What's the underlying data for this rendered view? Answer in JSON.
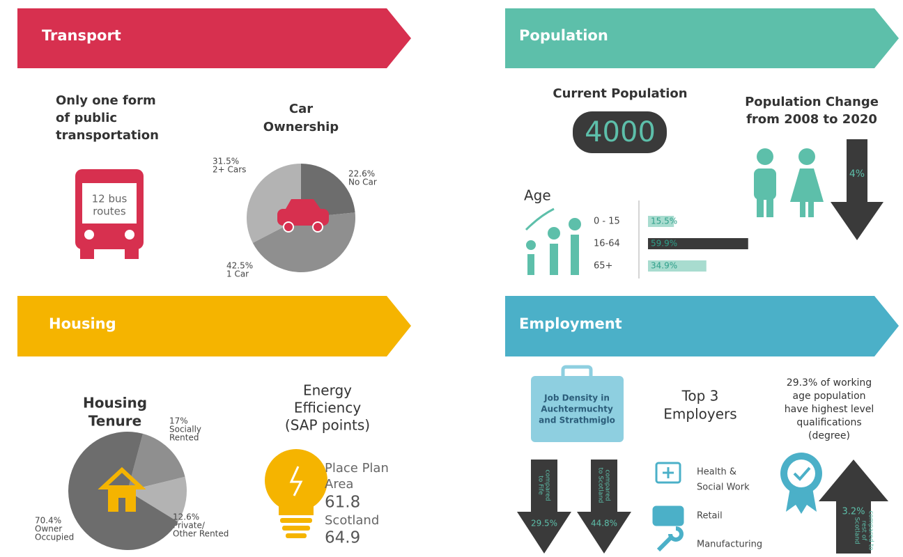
{
  "transport": {
    "title": "Transport",
    "bus": {
      "heading": [
        "Only one form",
        "of public",
        "transportation"
      ],
      "label": [
        "12 bus",
        "routes"
      ]
    },
    "car_ownership": {
      "type": "pie",
      "title": [
        "Car",
        "Ownership"
      ],
      "slices": [
        {
          "name": [
            "No Car"
          ],
          "value": 22.6,
          "value_label": "22.6%",
          "color": "#6d6d6d"
        },
        {
          "name": [
            "1 Car"
          ],
          "value": 42.5,
          "value_label": "42.5%",
          "color": "#8f8f8f"
        },
        {
          "name": [
            "2+ Cars"
          ],
          "value": 31.5,
          "value_label": "31.5%",
          "color": "#b3b3b3"
        }
      ]
    }
  },
  "population": {
    "title": "Population",
    "current": {
      "heading": "Current Population",
      "value": 4000
    },
    "change": {
      "heading": [
        "Population Change",
        "from 2008 to 2020"
      ],
      "value_label": "4%"
    },
    "age": {
      "type": "bar",
      "title": "Age",
      "categories": [
        "0 - 15",
        "16-64",
        "65+"
      ],
      "values": [
        15.5,
        59.9,
        34.9
      ],
      "value_labels": [
        "15.5%",
        "59.9%",
        "34.9%"
      ],
      "colors": [
        "#a8dccf",
        "#3a3a3a",
        "#a8dccf"
      ]
    }
  },
  "housing": {
    "title": "Housing",
    "tenure": {
      "type": "pie",
      "title": [
        "Housing",
        "Tenure"
      ],
      "slices": [
        {
          "name": [
            "Socially",
            "Rented"
          ],
          "value": 17,
          "value_label": "17%",
          "color": "#8f8f8f"
        },
        {
          "name": [
            "Private/",
            "Other Rented"
          ],
          "value": 12.6,
          "value_label": "12.6%",
          "color": "#b3b3b3"
        },
        {
          "name": [
            "Owner",
            "Occupied"
          ],
          "value": 70.4,
          "value_label": "70.4%",
          "color": "#6d6d6d"
        }
      ]
    },
    "energy": {
      "title": [
        "Energy",
        "Efficiency",
        "(SAP points)"
      ],
      "rows": [
        {
          "label": [
            "Place Plan",
            "Area"
          ],
          "value": 61.8
        },
        {
          "label": [
            "Scotland"
          ],
          "value": 64.9
        }
      ]
    }
  },
  "employment": {
    "title": "Employment",
    "job_density": [
      "Job Density in",
      "Auchtermuchty",
      "and Strathmiglo"
    ],
    "comparisons": [
      {
        "label": [
          "compared",
          "to Fife"
        ],
        "value_label": "29.5%"
      },
      {
        "label": [
          "compared",
          "to Scotland"
        ],
        "value_label": "44.8%"
      }
    ],
    "employers": {
      "heading": [
        "Top 3",
        "Employers"
      ],
      "items": [
        [
          "Health &",
          "Social Work"
        ],
        [
          "Retail"
        ],
        [
          "Manufacturing"
        ]
      ]
    },
    "qualifications": {
      "text": [
        "29.3% of working",
        "age population",
        "have highest level",
        "qualifications",
        "(degree)"
      ],
      "comparison": {
        "label": [
          "compared to",
          "rest of",
          "Scotland"
        ],
        "value_label": "3.2%"
      }
    }
  }
}
